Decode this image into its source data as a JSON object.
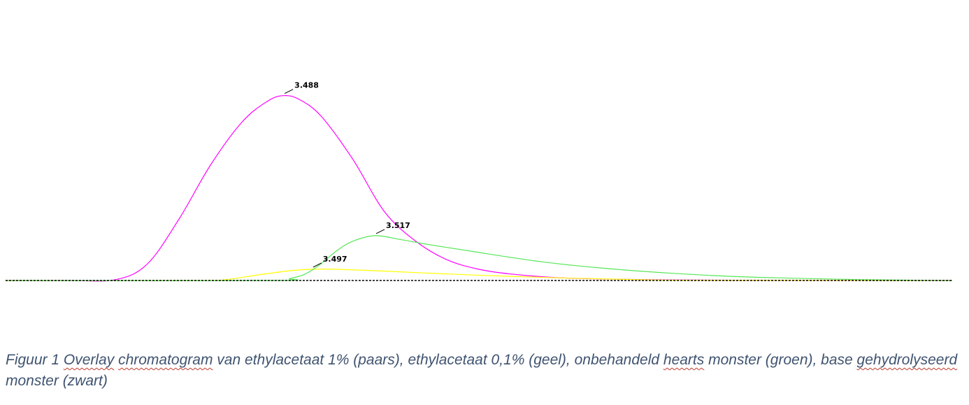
{
  "chart_data": {
    "type": "line",
    "title": "",
    "xlabel": "",
    "ylabel": "",
    "xlim": [
      3.4,
      3.7
    ],
    "ylim": [
      0,
      100
    ],
    "grid": false,
    "legend": "none",
    "series": [
      {
        "color": "#ff00ff",
        "x": [
          3.4,
          3.42,
          3.435,
          3.445,
          3.455,
          3.465,
          3.475,
          3.483,
          3.488,
          3.493,
          3.5,
          3.51,
          3.52,
          3.53,
          3.54,
          3.55,
          3.56,
          3.575,
          3.59,
          3.61,
          3.64,
          3.68,
          3.7
        ],
        "y": [
          0,
          0,
          0.5,
          9,
          33,
          62,
          85,
          96,
          99,
          97,
          88,
          65,
          37,
          21,
          11,
          6,
          3.5,
          1.5,
          0.8,
          0.3,
          0.1,
          0,
          0
        ]
      },
      {
        "color": "#ffff00",
        "x": [
          3.4,
          3.46,
          3.47,
          3.48,
          3.49,
          3.497,
          3.505,
          3.52,
          3.54,
          3.56,
          3.58,
          3.6,
          3.62,
          3.7
        ],
        "y": [
          0,
          0,
          0.5,
          3,
          5.2,
          6,
          6,
          5,
          3.5,
          2.2,
          1.2,
          0.5,
          0.1,
          0
        ]
      },
      {
        "color": "#55e655",
        "x": [
          3.4,
          3.485,
          3.49,
          3.495,
          3.5,
          3.505,
          3.51,
          3.517,
          3.525,
          3.535,
          3.55,
          3.57,
          3.59,
          3.61,
          3.63,
          3.65,
          3.67,
          3.69,
          3.7
        ],
        "y": [
          0,
          0,
          1,
          3.5,
          9,
          16,
          21,
          24,
          22,
          19,
          15,
          10,
          6.5,
          4,
          2.2,
          1.2,
          0.5,
          0.1,
          0
        ]
      },
      {
        "color": "#000000",
        "x": [
          3.4,
          3.7
        ],
        "y": [
          0,
          0
        ]
      }
    ],
    "annotations": [
      {
        "text": "3.488",
        "x": 3.488,
        "y": 99
      },
      {
        "text": "3.517",
        "x": 3.517,
        "y": 24
      },
      {
        "text": "3.497",
        "x": 3.497,
        "y": 6
      }
    ]
  },
  "caption": {
    "part1": "Figuur 1 ",
    "overlay": "Overlay",
    "space1": " ",
    "chromatogram": "chromatogram",
    "part2": " van ethylacetaat 1% (paars), ethylacetaat 0,1% (geel), onbehandeld ",
    "hearts": "hearts",
    "part3": " monster (groen), base ",
    "gehydrolyseerd": "gehydrolyseerd",
    "part4": " monster (zwart)"
  }
}
